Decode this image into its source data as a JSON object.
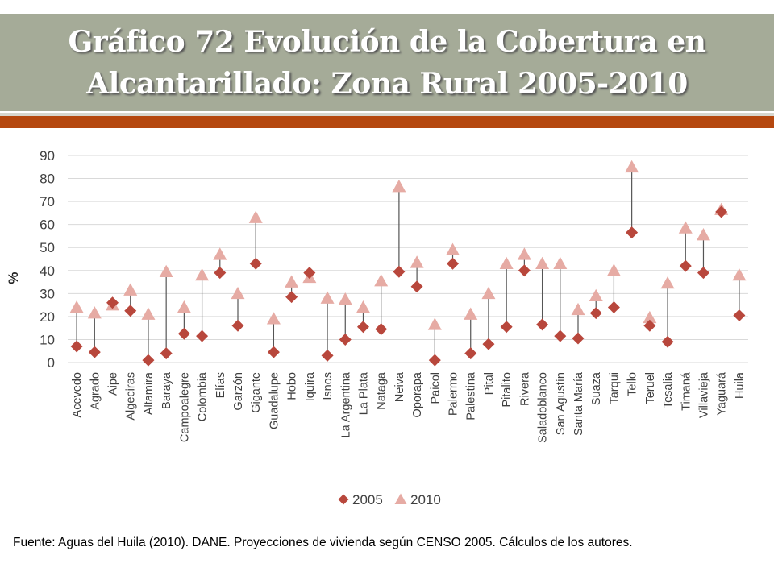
{
  "title": "Gráfico 72 Evolución de la Cobertura en Alcantarillado: Zona Rural 2005-2010",
  "source_note": "Fuente: Aguas del Huila (2010). DANE. Proyecciones de vivienda según CENSO 2005. Cálculos de los autores.",
  "colors": {
    "s2005": "#b8473c",
    "s2010": "#e6aba4",
    "grid": "#d9d9d9",
    "stem": "#555555",
    "axis_text": "#404040"
  },
  "chart_data": {
    "type": "scatter",
    "title": "",
    "ylabel": "%",
    "xlabel": "",
    "ylim": [
      0,
      90
    ],
    "yticks": [
      0,
      10,
      20,
      30,
      40,
      50,
      60,
      70,
      80,
      90
    ],
    "grid": true,
    "legend_position": "bottom",
    "categories": [
      "Acevedo",
      "Agrado",
      "Aipe",
      "Algeciras",
      "Altamira",
      "Baraya",
      "Campoalegre",
      "Colombia",
      "Elías",
      "Garzón",
      "Gigante",
      "Guadalupe",
      "Hobo",
      "Iquira",
      "Isnos",
      "La Argentina",
      "La Plata",
      "Nataga",
      "Neiva",
      "Oporapa",
      "Paicol",
      "Palermo",
      "Palestina",
      "Pital",
      "Pitalito",
      "Rivera",
      "Saladoblanco",
      "San Agustín",
      "Santa María",
      "Suaza",
      "Tarqui",
      "Tello",
      "Teruel",
      "Tesalia",
      "Timaná",
      "Villavieja",
      "Yaguará",
      "Huila"
    ],
    "series": [
      {
        "name": "2005",
        "marker": "diamond",
        "values": [
          7,
          4.5,
          26,
          22.5,
          1,
          4,
          12.5,
          11.5,
          39,
          16,
          43,
          4.5,
          28.5,
          39,
          3,
          10,
          15.5,
          14.5,
          39.5,
          33,
          1,
          43,
          4,
          8,
          15.5,
          40,
          16.5,
          11.5,
          10.5,
          21.5,
          24,
          56.5,
          16,
          9,
          42,
          39,
          65.5,
          20.5
        ]
      },
      {
        "name": "2010",
        "marker": "triangle",
        "values": [
          24,
          21.5,
          25,
          31.5,
          21,
          39.5,
          24,
          38,
          47,
          30,
          63,
          19,
          35,
          37,
          28,
          27.5,
          24,
          35.5,
          76.5,
          43.5,
          16.5,
          49,
          21,
          30,
          43,
          47,
          43,
          43,
          23,
          29,
          40,
          85,
          19.5,
          34.5,
          58.5,
          55.5,
          66.5,
          38
        ]
      }
    ]
  }
}
